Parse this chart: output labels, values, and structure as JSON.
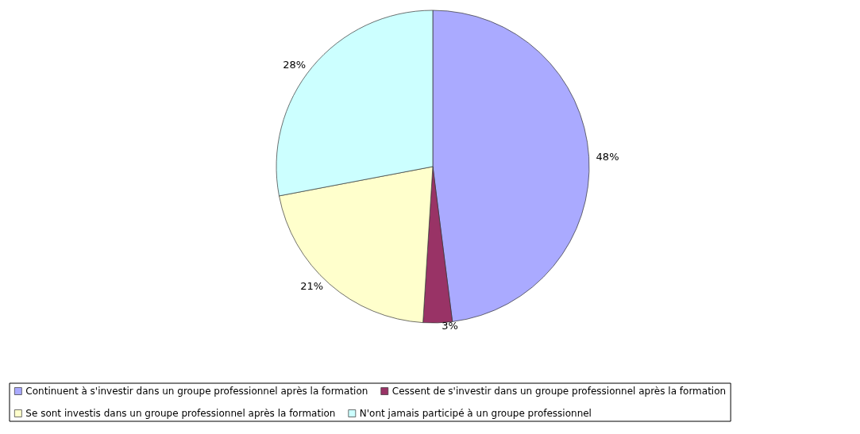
{
  "chart_data": {
    "type": "pie",
    "categories": [
      "Continuent à s'investir dans un groupe professionnel après la formation",
      "Cessent de s'investir dans un groupe professionnel après la formation",
      "Se sont investis dans un groupe professionnel après la formation",
      "N'ont jamais participé à un groupe professionnel"
    ],
    "values": [
      48,
      3,
      21,
      28
    ],
    "colors": [
      "#aaaaff",
      "#993366",
      "#ffffcc",
      "#ccffff"
    ],
    "value_labels": [
      "48%",
      "3%",
      "21%",
      "28%"
    ],
    "legend": "bottom"
  }
}
